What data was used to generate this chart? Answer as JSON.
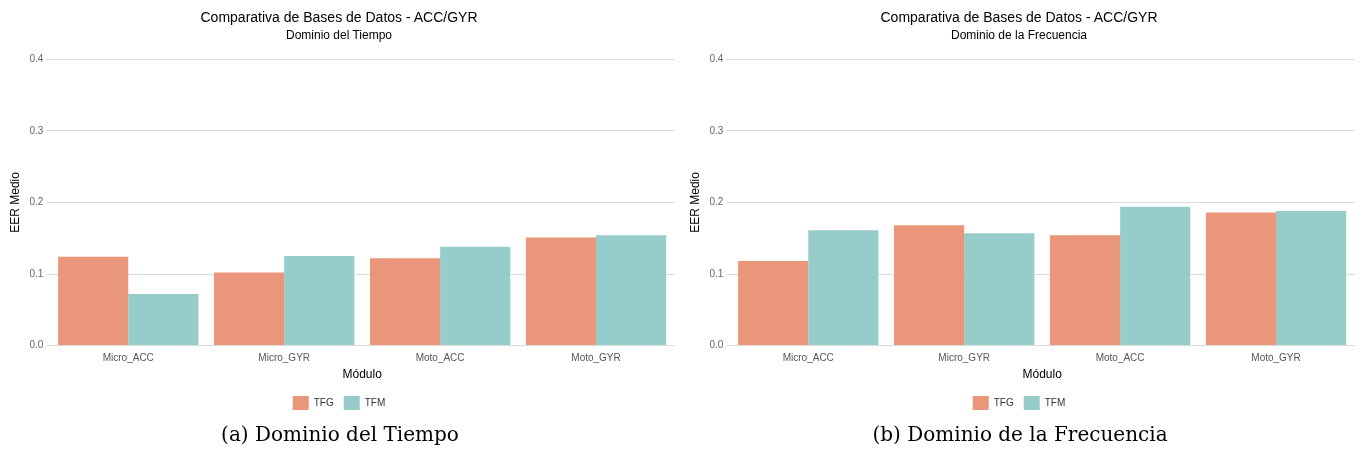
{
  "chart_data": [
    {
      "type": "bar",
      "title": "Comparativa de Bases de Datos - ACC/GYR",
      "subtitle": "Dominio del Tiempo",
      "xlabel": "Módulo",
      "ylabel": "EER Medio",
      "categories": [
        "Micro_ACC",
        "Micro_GYR",
        "Moto_ACC",
        "Moto_GYR"
      ],
      "series": [
        {
          "name": "TFG",
          "color": "#e9967a",
          "values": [
            0.124,
            0.102,
            0.122,
            0.151
          ]
        },
        {
          "name": "TFM",
          "color": "#96cdcb",
          "values": [
            0.072,
            0.125,
            0.138,
            0.154
          ]
        }
      ],
      "ylim": [
        0,
        0.4
      ],
      "yticks": [
        {
          "value": 0,
          "label": "0.0"
        },
        0.1,
        0.2,
        0.3,
        0.4
      ],
      "grid": "y",
      "legend": "bottom",
      "annotations": [
        "(a) Dominio del Tiempo"
      ]
    },
    {
      "type": "bar",
      "title": "Comparativa de Bases de Datos - ACC/GYR",
      "subtitle": "Dominio de la Frecuencia",
      "xlabel": "Módulo",
      "ylabel": "EER Medio",
      "categories": [
        "Micro_ACC",
        "Micro_GYR",
        "Moto_ACC",
        "Moto_GYR"
      ],
      "series": [
        {
          "name": "TFG",
          "color": "#e9967a",
          "values": [
            0.118,
            0.168,
            0.154,
            0.186
          ]
        },
        {
          "name": "TFM",
          "color": "#96cdcb",
          "values": [
            0.161,
            0.157,
            0.194,
            0.188
          ]
        }
      ],
      "ylim": [
        0,
        0.4
      ],
      "yticks": [
        {
          "value": 0,
          "label": "0.0"
        },
        0.1,
        0.2,
        0.3,
        0.4
      ],
      "grid": "y",
      "legend": "bottom",
      "annotations": [
        "(b) Dominio de la Frecuencia"
      ]
    }
  ]
}
